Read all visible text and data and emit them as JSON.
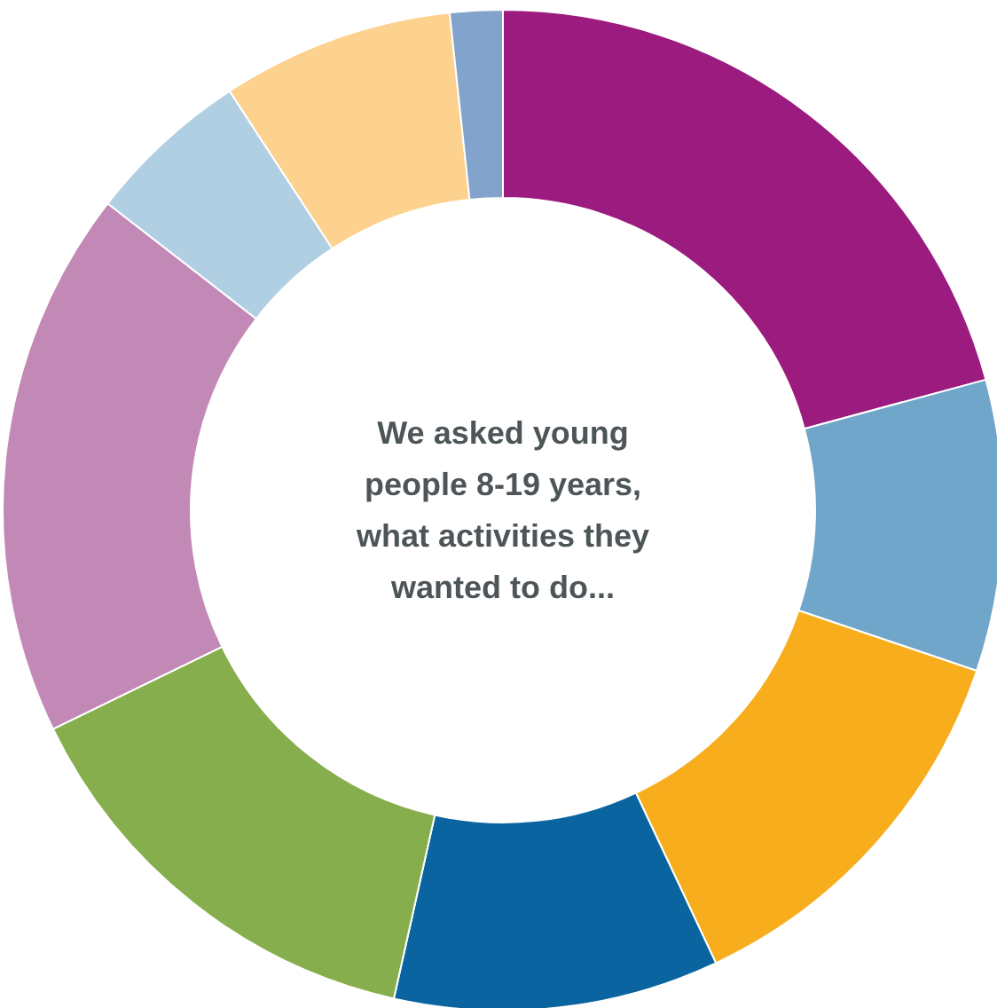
{
  "chart_data": {
    "type": "donut",
    "title": "We asked young people 8-19 years, what activities they wanted to do...",
    "categories": [
      null,
      null,
      null,
      null,
      null,
      null,
      null,
      null,
      null
    ],
    "values": [
      20.8,
      9.4,
      12.8,
      10.5,
      14.3,
      17.7,
      5.3,
      7.5,
      1.7
    ],
    "colors": [
      "#9b1b7e",
      "#6fa6c9",
      "#f8ad1d",
      "#0a64a0",
      "#86ae4c",
      "#c389b6",
      "#b1cfe3",
      "#fdd18e",
      "#81a3cc"
    ]
  }
}
